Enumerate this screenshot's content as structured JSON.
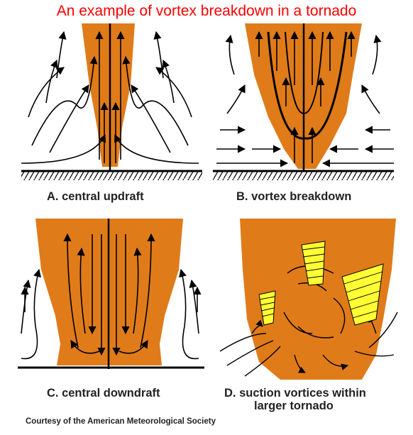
{
  "title": "An example of vortex breakdown in a tornado",
  "panels": [
    {
      "id": "A",
      "caption": "A. central updraft"
    },
    {
      "id": "B",
      "caption": "B. vortex breakdown"
    },
    {
      "id": "C",
      "caption": "C. central downdraft"
    },
    {
      "id": "D",
      "caption_line1": "D. suction vortices within",
      "caption_line2": "larger tornado"
    }
  ],
  "credit": "Courtesy of the American Meteorological Society",
  "colors": {
    "title": "#ff0000",
    "funnel": "#e07b1a",
    "suction_vortex": "#ffff33",
    "flow": "#000000"
  }
}
